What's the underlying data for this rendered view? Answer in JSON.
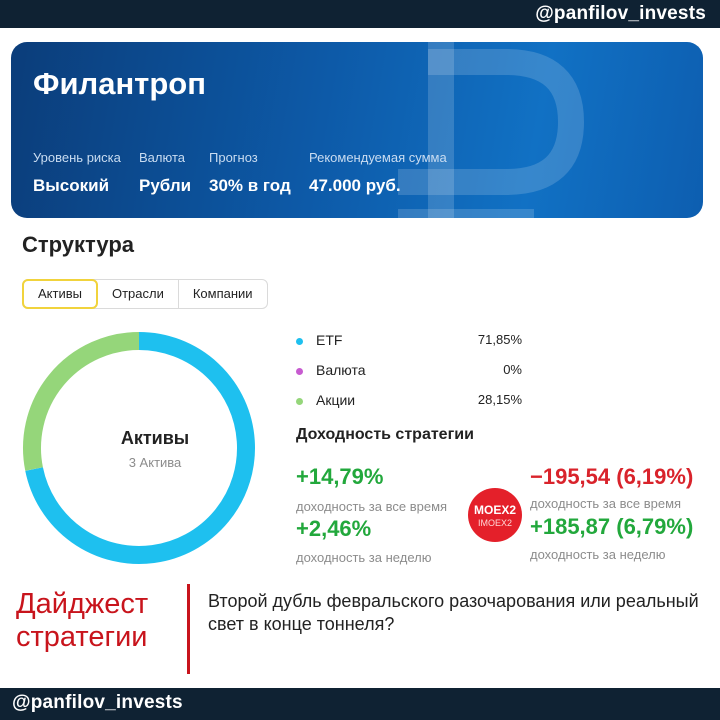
{
  "top_handle": "@panfilov_invests",
  "bottom_handle": "@panfilov_invests",
  "hero": {
    "title": "Филантроп",
    "stats": [
      {
        "label": "Уровень риска",
        "value": "Высокий"
      },
      {
        "label": "Валюта",
        "value": "Рубли"
      },
      {
        "label": "Прогноз",
        "value": "30% в год"
      },
      {
        "label": "Рекомендуемая сумма",
        "value": "47.000 руб."
      }
    ],
    "watermark_icon": "ruble-icon"
  },
  "structure": {
    "title": "Структура",
    "tabs": [
      {
        "label": "Активы",
        "active": true
      },
      {
        "label": "Отрасли",
        "active": false
      },
      {
        "label": "Компании",
        "active": false
      }
    ],
    "donut": {
      "center_title": "Активы",
      "center_subtitle": "3 Актива",
      "segments": [
        {
          "name": "ETF",
          "percent": 71.85,
          "color": "#1ec0ef"
        },
        {
          "name": "Валюта",
          "percent": 0,
          "color": "#c75bd0"
        },
        {
          "name": "Акции",
          "percent": 28.15,
          "color": "#95d67a"
        }
      ]
    },
    "legend": [
      {
        "name": "ETF",
        "value": "71,85%",
        "color": "#1ec0ef"
      },
      {
        "name": "Валюта",
        "value": "0%",
        "color": "#c75bd0"
      },
      {
        "name": "Акции",
        "value": "28,15%",
        "color": "#95d67a"
      }
    ]
  },
  "yield": {
    "title": "Доходность стратегии",
    "strategy": {
      "all_time_value": "+14,79%",
      "all_time_label": "доходность за все время",
      "week_value": "+2,46%",
      "week_label": "доходность за неделю"
    },
    "benchmark": {
      "badge": "MOEX2",
      "badge_sub": "IMOEX2",
      "all_time_value": "−195,54 (6,19%)",
      "all_time_label": "доходность за все время",
      "week_value": "+185,87 (6,79%)",
      "week_label": "доходность за неделю"
    }
  },
  "digest": {
    "title_line1": "Дайджест",
    "title_line2": "стратегии",
    "text": "Второй дубль февральского разочарования или реальный свет в конце тоннеля?"
  },
  "colors": {
    "dark_bar": "#0f2233",
    "hero_blue": "#0d5aa8",
    "positive": "#22a83c",
    "negative": "#d9232b",
    "digest_red": "#c8141c",
    "tab_active_border": "#f1d33c"
  }
}
